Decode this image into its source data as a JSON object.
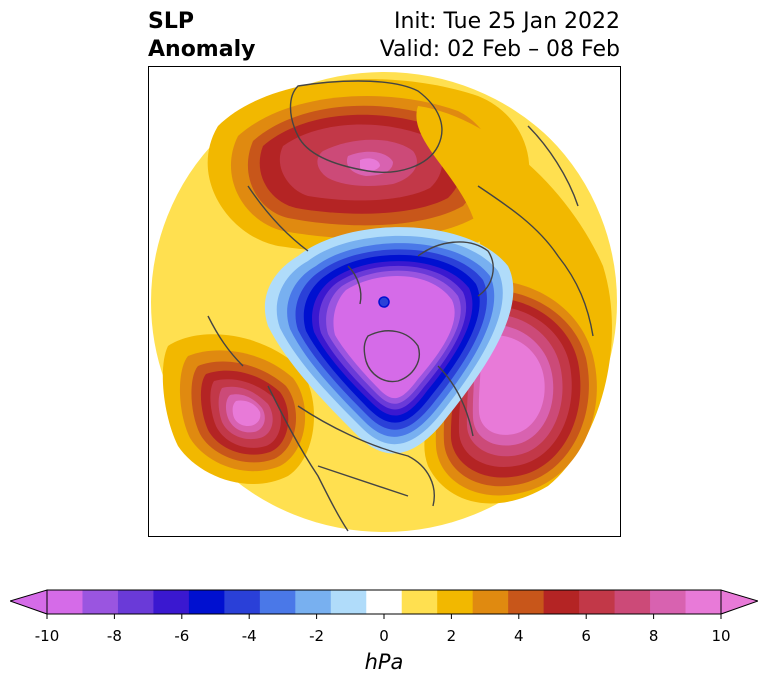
{
  "title": {
    "left_line1": "SLP",
    "left_line2": "Anomaly",
    "right_line1": "Init: Tue 25 Jan 2022",
    "right_line2": "Valid: 02 Feb – 08 Feb"
  },
  "colorbar": {
    "unit": "hPa",
    "ticks": [
      "-10",
      "-8",
      "-6",
      "-4",
      "-2",
      "0",
      "2",
      "4",
      "6",
      "8",
      "10"
    ],
    "tick_values": [
      -10,
      -8,
      -6,
      -4,
      -2,
      0,
      2,
      4,
      6,
      8,
      10
    ],
    "colors": [
      "#d56be8",
      "#9a55e0",
      "#6a3ad8",
      "#3a18d0",
      "#0010d0",
      "#2a40d8",
      "#4a78e8",
      "#78b0f0",
      "#b0dcfa",
      "#ffffff",
      "#ffe050",
      "#f2b800",
      "#e08a10",
      "#c8561a",
      "#b42424",
      "#c23848",
      "#cc4a78",
      "#d862b0",
      "#e87ad8"
    ],
    "extend_low_color": "#d56be8",
    "extend_high_color": "#e87ad8"
  },
  "colors": {
    "land_outline": "#444444",
    "frame": "#000000"
  }
}
